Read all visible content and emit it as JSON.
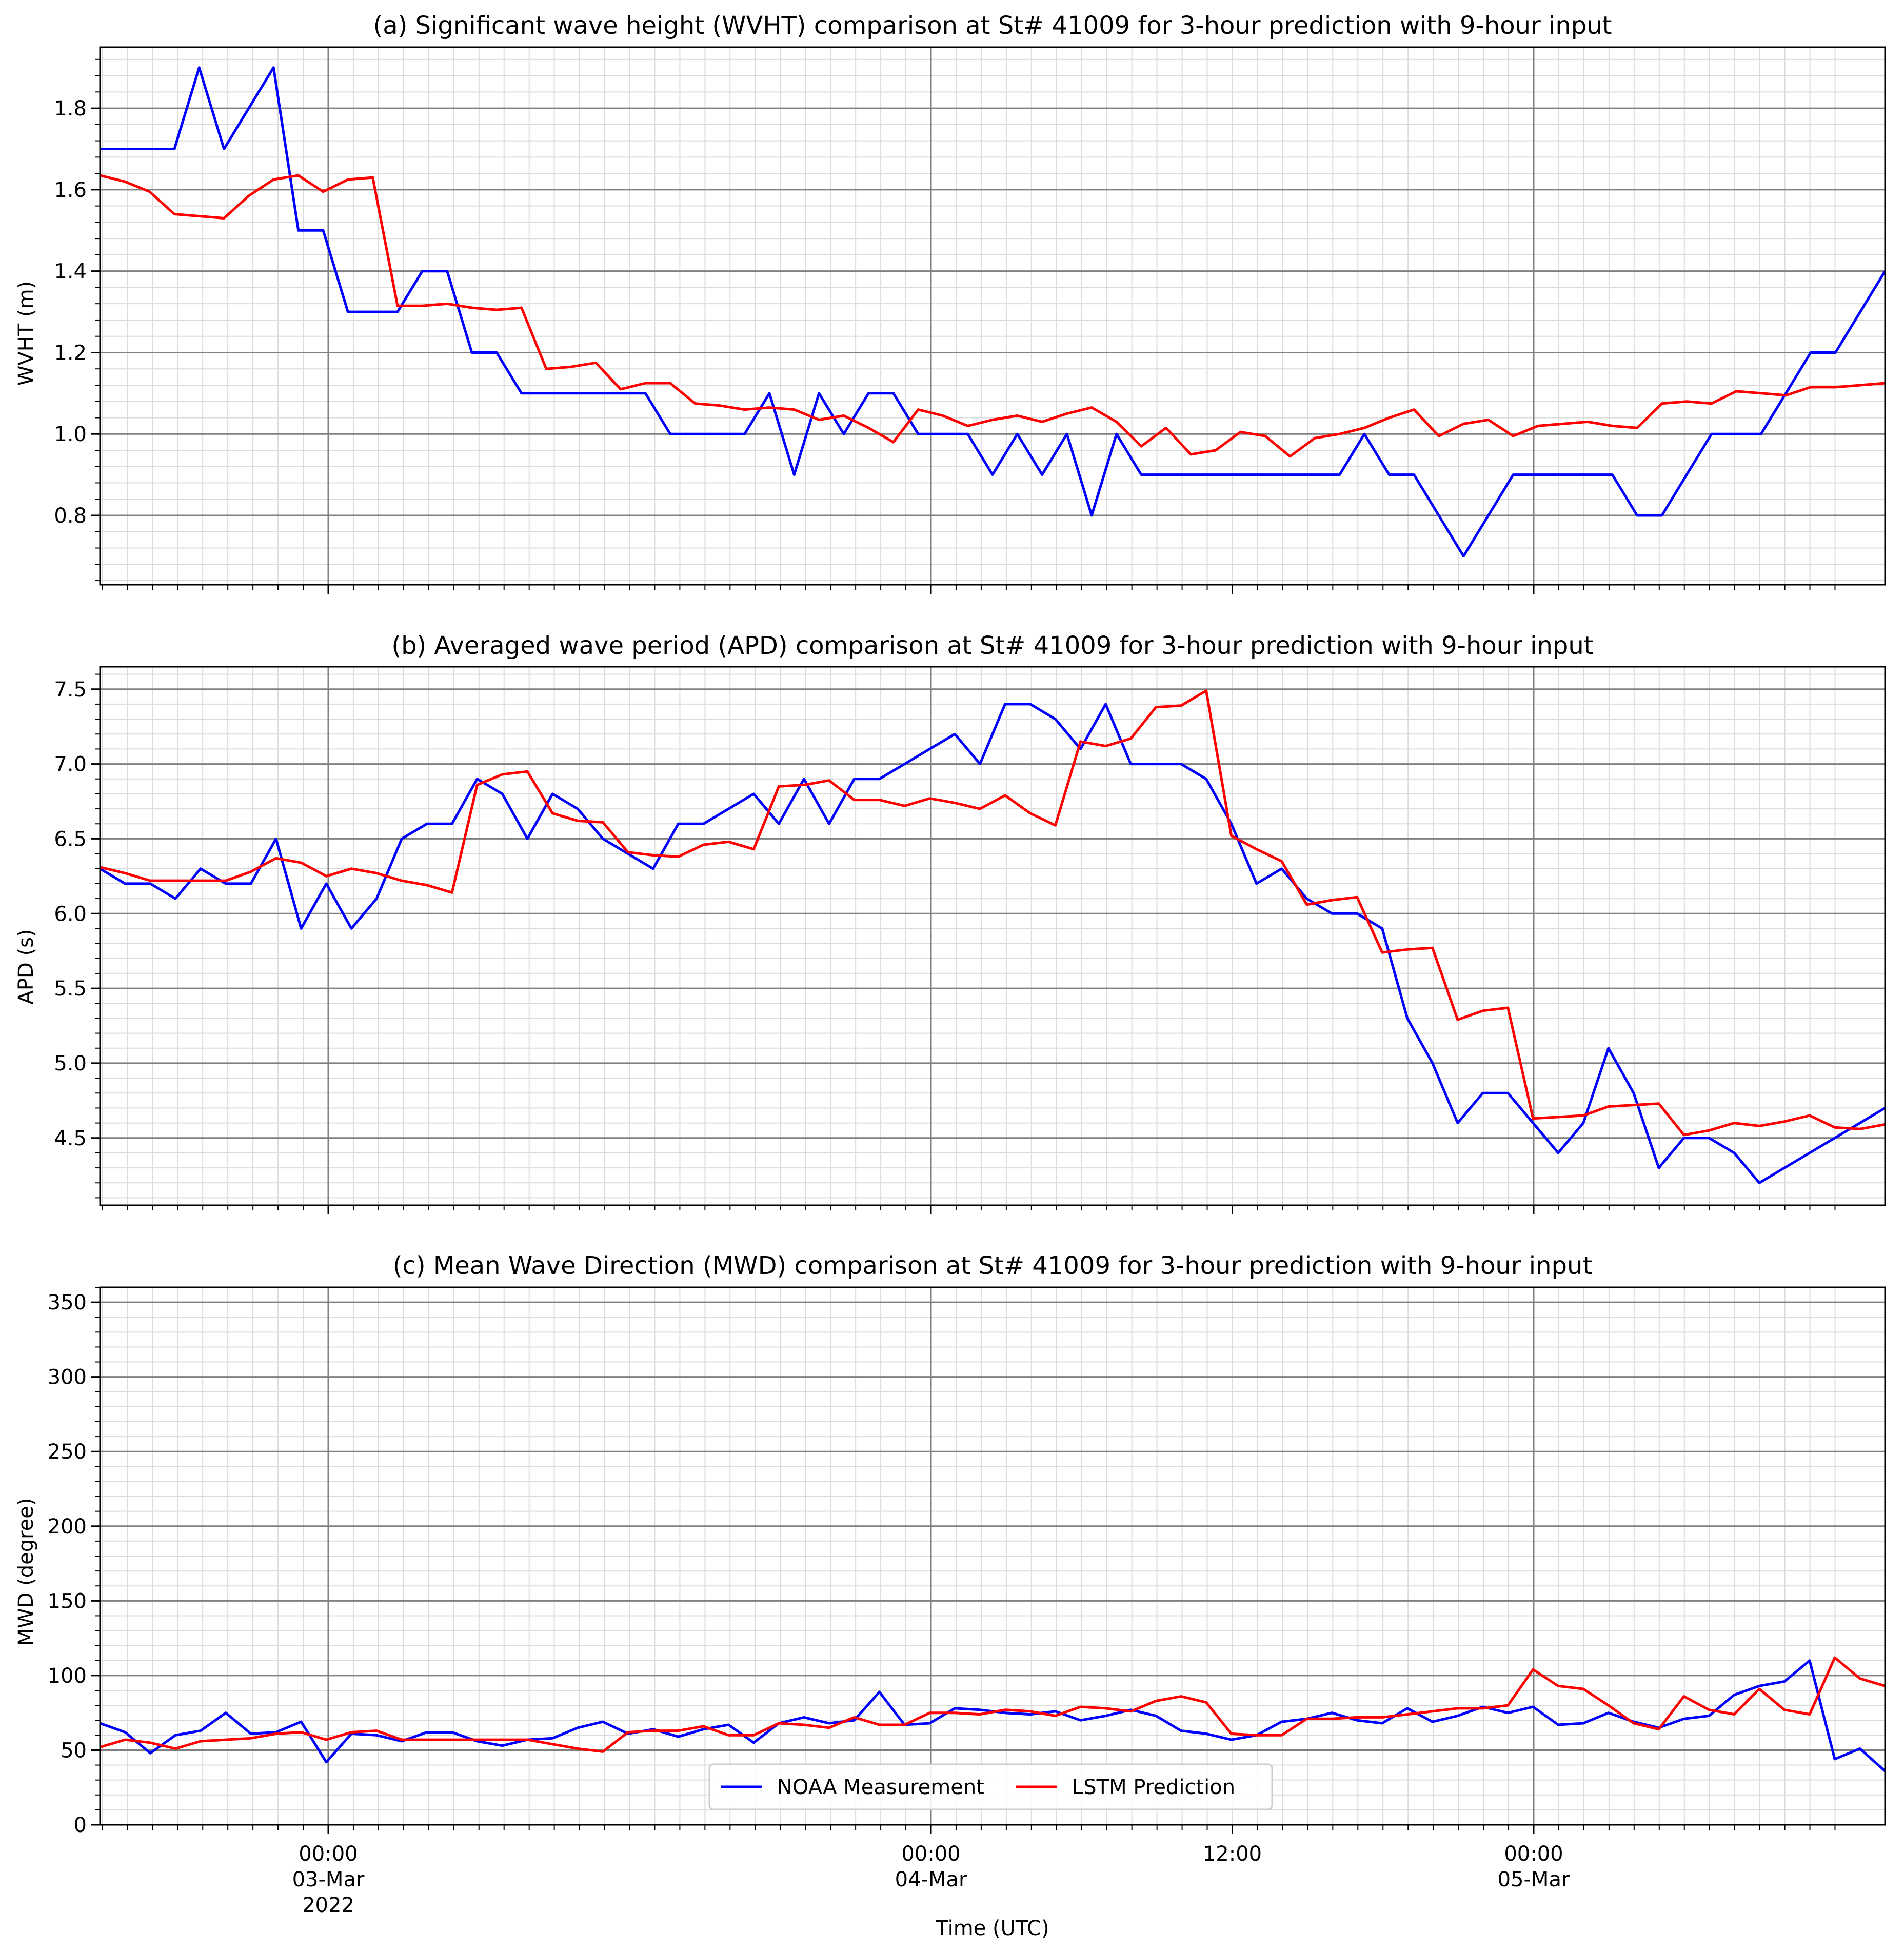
{
  "chart_data": [
    {
      "type": "line",
      "title": "(a) Significant wave height (WVHT) comparison at St# 41009 for 3-hour prediction with 9-hour input",
      "ylabel": "WVHT (m)",
      "ylim": [
        0.63,
        1.95
      ],
      "yticks": [
        0.8,
        1.0,
        1.2,
        1.4,
        1.6,
        1.8
      ],
      "ytick_labels": [
        "0.8",
        "1.0",
        "1.2",
        "1.4",
        "1.6",
        "1.8"
      ],
      "grid": true,
      "series": [
        {
          "name": "NOAA Measurement",
          "color": "#0000ff",
          "values": [
            1.7,
            1.7,
            1.7,
            1.7,
            1.9,
            1.7,
            1.8,
            1.9,
            1.5,
            1.5,
            1.3,
            1.3,
            1.3,
            1.4,
            1.4,
            1.2,
            1.2,
            1.1,
            1.1,
            1.1,
            1.1,
            1.1,
            1.1,
            1.0,
            1.0,
            1.0,
            1.0,
            1.1,
            0.9,
            1.1,
            1.0,
            1.1,
            1.1,
            1.0,
            1.0,
            1.0,
            0.9,
            1.0,
            0.9,
            1.0,
            0.8,
            1.0,
            0.9,
            0.9,
            0.9,
            0.9,
            0.9,
            0.9,
            0.9,
            0.9,
            0.9,
            1.0,
            0.9,
            0.9,
            0.8,
            0.7,
            0.8,
            0.9,
            0.9,
            0.9,
            0.9,
            0.9,
            0.8,
            0.8,
            0.9,
            1.0,
            1.0,
            1.0,
            1.1,
            1.2,
            1.2,
            1.3,
            1.4
          ]
        },
        {
          "name": "LSTM Prediction",
          "color": "#ff0000",
          "values": [
            1.635,
            1.62,
            1.595,
            1.54,
            1.535,
            1.53,
            1.585,
            1.625,
            1.635,
            1.595,
            1.625,
            1.63,
            1.315,
            1.315,
            1.32,
            1.31,
            1.305,
            1.31,
            1.16,
            1.165,
            1.175,
            1.11,
            1.125,
            1.125,
            1.075,
            1.07,
            1.06,
            1.065,
            1.06,
            1.035,
            1.045,
            1.015,
            0.98,
            1.06,
            1.045,
            1.02,
            1.035,
            1.045,
            1.03,
            1.05,
            1.065,
            1.03,
            0.97,
            1.015,
            0.95,
            0.96,
            1.005,
            0.995,
            0.945,
            0.99,
            1.0,
            1.015,
            1.04,
            1.06,
            0.995,
            1.025,
            1.035,
            0.995,
            1.02,
            1.025,
            1.03,
            1.02,
            1.015,
            1.075,
            1.08,
            1.075,
            1.105,
            1.1,
            1.095,
            1.115,
            1.115,
            1.12,
            1.125
          ]
        }
      ]
    },
    {
      "type": "line",
      "title": "(b) Averaged wave period (APD) comparison at St# 41009 for 3-hour prediction with 9-hour input",
      "ylabel": "APD (s)",
      "ylim": [
        4.05,
        7.65
      ],
      "yticks": [
        4.5,
        5.0,
        5.5,
        6.0,
        6.5,
        7.0,
        7.5
      ],
      "ytick_labels": [
        "4.5",
        "5.0",
        "5.5",
        "6.0",
        "6.5",
        "7.0",
        "7.5"
      ],
      "grid": true,
      "series": [
        {
          "name": "NOAA Measurement",
          "color": "#0000ff",
          "values": [
            6.3,
            6.2,
            6.2,
            6.1,
            6.3,
            6.2,
            6.2,
            6.5,
            5.9,
            6.2,
            5.9,
            6.1,
            6.5,
            6.6,
            6.6,
            6.9,
            6.8,
            6.5,
            6.8,
            6.7,
            6.5,
            6.4,
            6.3,
            6.6,
            6.6,
            6.7,
            6.8,
            6.6,
            6.9,
            6.6,
            6.9,
            6.9,
            7.0,
            7.1,
            7.2,
            7.0,
            7.4,
            7.4,
            7.3,
            7.1,
            7.4,
            7.0,
            7.0,
            7.0,
            6.9,
            6.6,
            6.2,
            6.3,
            6.1,
            6.0,
            6.0,
            5.9,
            5.3,
            5.0,
            4.6,
            4.8,
            4.8,
            4.6,
            4.4,
            4.6,
            5.1,
            4.8,
            4.3,
            4.5,
            4.5,
            4.4,
            4.2,
            4.3,
            4.4,
            4.5,
            4.6,
            4.7
          ]
        },
        {
          "name": "LSTM Prediction",
          "color": "#ff0000",
          "values": [
            6.31,
            6.27,
            6.22,
            6.22,
            6.22,
            6.22,
            6.28,
            6.37,
            6.34,
            6.25,
            6.3,
            6.27,
            6.22,
            6.19,
            6.14,
            6.86,
            6.93,
            6.95,
            6.67,
            6.62,
            6.61,
            6.41,
            6.39,
            6.38,
            6.46,
            6.48,
            6.43,
            6.85,
            6.86,
            6.89,
            6.76,
            6.76,
            6.72,
            6.77,
            6.74,
            6.7,
            6.79,
            6.67,
            6.59,
            7.15,
            7.12,
            7.17,
            7.38,
            7.39,
            7.49,
            6.52,
            6.43,
            6.35,
            6.06,
            6.09,
            6.11,
            5.74,
            5.76,
            5.77,
            5.29,
            5.35,
            5.37,
            4.63,
            4.64,
            4.65,
            4.71,
            4.72,
            4.73,
            4.52,
            4.55,
            4.6,
            4.58,
            4.61,
            4.65,
            4.57,
            4.56,
            4.59
          ]
        }
      ]
    },
    {
      "type": "line",
      "title": "(c) Mean Wave Direction (MWD) comparison at St# 41009 for 3-hour prediction with 9-hour input",
      "ylabel": "MWD (degree)",
      "xlabel": "Time (UTC)",
      "ylim": [
        0,
        360
      ],
      "yticks": [
        0,
        50,
        100,
        150,
        200,
        250,
        300,
        350
      ],
      "ytick_labels": [
        "0",
        "50",
        "100",
        "150",
        "200",
        "250",
        "300",
        "350"
      ],
      "xtick_labels": [
        {
          "lines": [
            "00:00",
            "03-Mar",
            "2022"
          ]
        },
        {
          "lines": [
            "00:00",
            "04-Mar"
          ]
        },
        {
          "lines": [
            "12:00"
          ]
        },
        {
          "lines": [
            "00:00",
            "05-Mar"
          ]
        }
      ],
      "grid": true,
      "legend": {
        "position": "lower center",
        "entries": [
          "NOAA Measurement",
          "LSTM Prediction"
        ]
      },
      "series": [
        {
          "name": "NOAA Measurement",
          "color": "#0000ff",
          "values": [
            68,
            62,
            48,
            60,
            63,
            75,
            61,
            62,
            69,
            42,
            61,
            60,
            56,
            62,
            62,
            56,
            53,
            57,
            58,
            65,
            69,
            61,
            64,
            59,
            64,
            67,
            55,
            68,
            72,
            68,
            70,
            89,
            67,
            68,
            78,
            77,
            75,
            74,
            76,
            70,
            73,
            77,
            73,
            63,
            61,
            57,
            60,
            69,
            71,
            75,
            70,
            68,
            78,
            69,
            73,
            79,
            75,
            79,
            67,
            68,
            75,
            69,
            65,
            71,
            73,
            87,
            93,
            96,
            110,
            44,
            51,
            36
          ]
        },
        {
          "name": "LSTM Prediction",
          "color": "#ff0000",
          "values": [
            52,
            57,
            55,
            51,
            56,
            57,
            58,
            61,
            62,
            57,
            62,
            63,
            57,
            57,
            57,
            57,
            57,
            57,
            54,
            51,
            49,
            62,
            63,
            63,
            66,
            60,
            60,
            68,
            67,
            65,
            72,
            67,
            67,
            75,
            75,
            74,
            77,
            76,
            73,
            79,
            78,
            76,
            83,
            86,
            82,
            61,
            60,
            60,
            71,
            71,
            72,
            72,
            74,
            76,
            78,
            78,
            80,
            104,
            93,
            91,
            80,
            68,
            64,
            86,
            77,
            74,
            91,
            77,
            74,
            112,
            98,
            93
          ]
        }
      ]
    }
  ]
}
